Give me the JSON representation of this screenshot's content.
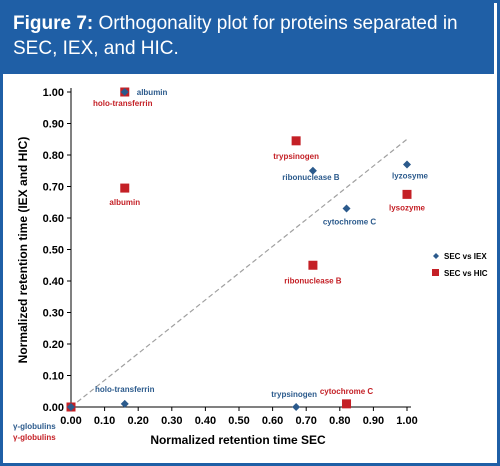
{
  "figure": {
    "label": "Figure 7:",
    "caption": "Orthogonality plot for proteins separated in SEC, IEX, and HIC."
  },
  "colors": {
    "header": "#1f5fa6",
    "iex": "#2b5a8c",
    "hic": "#c42026",
    "diagonal": "#a0a0a0"
  },
  "chart_data": {
    "type": "scatter",
    "xlabel": "Normalized retention time SEC",
    "ylabel": "Normalized retention time (IEX and HIC)",
    "xlim": [
      0,
      1
    ],
    "ylim": [
      0,
      1
    ],
    "xticks": [
      "0.00",
      "0.10",
      "0.20",
      "0.30",
      "0.40",
      "0.50",
      "0.60",
      "0.70",
      "0.80",
      "0.90",
      "1.00"
    ],
    "yticks": [
      "0.00",
      "0.10",
      "0.20",
      "0.30",
      "0.40",
      "0.50",
      "0.60",
      "0.70",
      "0.80",
      "0.90",
      "1.00"
    ],
    "grid": false,
    "legend_position": "right",
    "reference_line": {
      "from": [
        0,
        0
      ],
      "to": [
        1,
        0.85
      ],
      "style": "dashed"
    },
    "series": [
      {
        "name": "SEC vs IEX",
        "marker": "diamond",
        "points": [
          {
            "label": "γ-globulins",
            "x": 0.0,
            "y": 0.0
          },
          {
            "label": "holo-transferrin",
            "x": 0.16,
            "y": 0.01
          },
          {
            "label": "albumin",
            "x": 0.16,
            "y": 1.0
          },
          {
            "label": "trypsinogen",
            "x": 0.67,
            "y": 0.0
          },
          {
            "label": "ribonuclease B",
            "x": 0.72,
            "y": 0.75
          },
          {
            "label": "cytochrome C",
            "x": 0.82,
            "y": 0.63
          },
          {
            "label": "lyzosyme",
            "x": 1.0,
            "y": 0.77
          }
        ]
      },
      {
        "name": "SEC vs HIC",
        "marker": "square",
        "points": [
          {
            "label": "γ-globulins",
            "x": 0.0,
            "y": 0.0
          },
          {
            "label": "holo-transferrin",
            "x": 0.16,
            "y": 1.0
          },
          {
            "label": "albumin",
            "x": 0.16,
            "y": 0.695
          },
          {
            "label": "trypsinogen",
            "x": 0.67,
            "y": 0.845
          },
          {
            "label": "ribonuclease B",
            "x": 0.72,
            "y": 0.45
          },
          {
            "label": "cytochrome C",
            "x": 0.82,
            "y": 0.01
          },
          {
            "label": "lysozyme",
            "x": 1.0,
            "y": 0.675
          }
        ]
      }
    ]
  }
}
